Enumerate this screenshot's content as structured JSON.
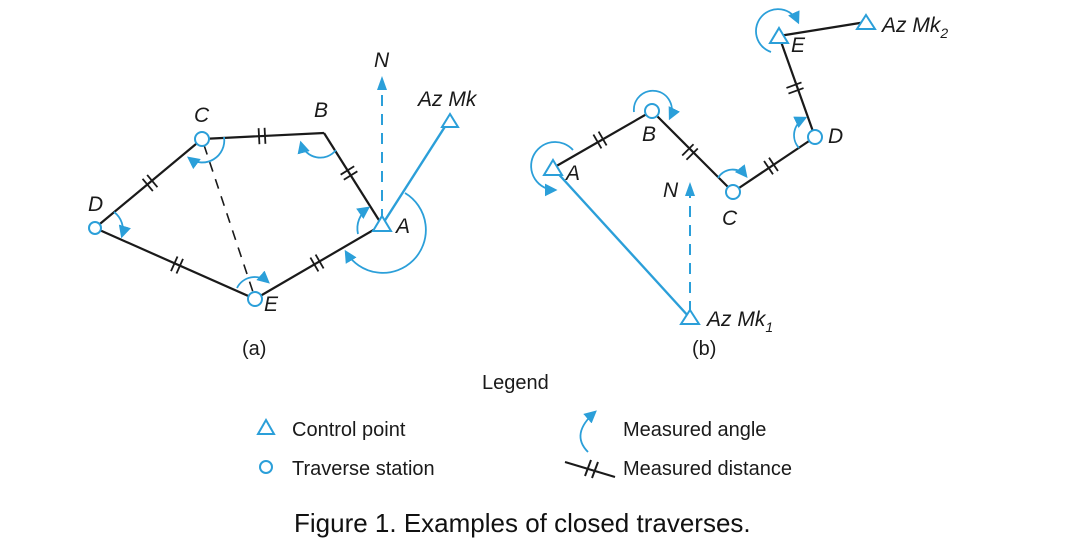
{
  "colors": {
    "line": "#1a1a1a",
    "accent": "#2b9fd9"
  },
  "diagram_a": {
    "north": "N",
    "azimuth_mark": "Az Mk",
    "stations": {
      "A": "A",
      "B": "B",
      "C": "C",
      "D": "D",
      "E": "E"
    },
    "sublabel": "(a)"
  },
  "diagram_b": {
    "north": "N",
    "azimuth_mark_1": "Az Mk",
    "azimuth_mark_1_sub": "1",
    "azimuth_mark_2": "Az Mk",
    "azimuth_mark_2_sub": "2",
    "stations": {
      "A": "A",
      "B": "B",
      "C": "C",
      "D": "D",
      "E": "E"
    },
    "sublabel": "(b)"
  },
  "legend": {
    "title": "Legend",
    "items": {
      "control_point": {
        "label": "Control point",
        "icon": "triangle-icon"
      },
      "traverse_station": {
        "label": "Traverse station",
        "icon": "circle-icon"
      },
      "measured_angle": {
        "label": "Measured angle",
        "icon": "curved-arrow-icon"
      },
      "measured_distance": {
        "label": "Measured distance",
        "icon": "double-tick-icon"
      }
    }
  },
  "caption": "Figure 1. Examples of closed traverses."
}
